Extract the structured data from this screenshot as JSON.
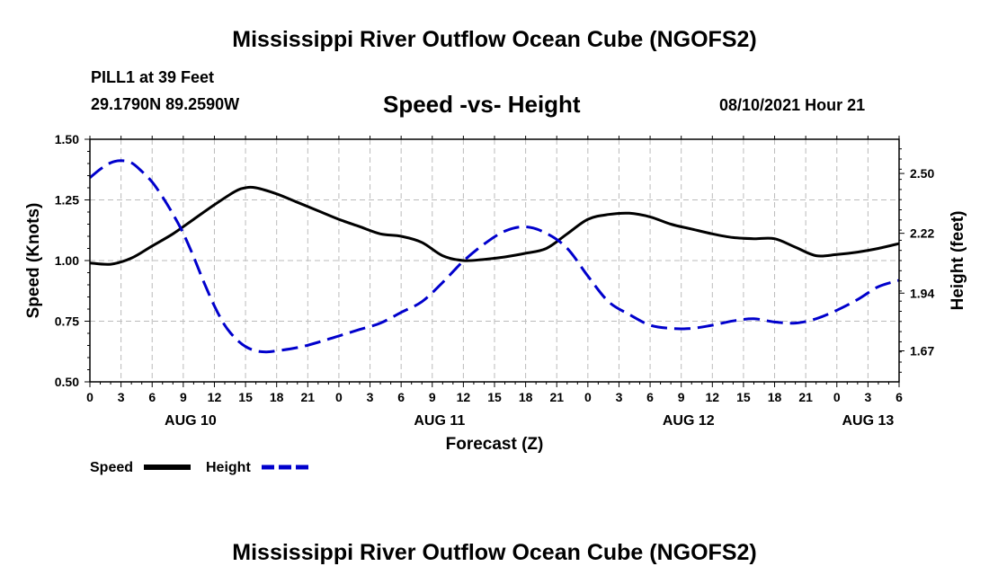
{
  "header": {
    "title": "Mississippi River Outflow Ocean Cube (NGOFS2)",
    "station": "PILL1 at 39 Feet",
    "coords": "29.1790N  89.2590W",
    "subtitle": "Speed -vs- Height",
    "datetime": "08/10/2021 Hour 21"
  },
  "footer": {
    "title": "Mississippi River Outflow Ocean Cube (NGOFS2)"
  },
  "legend": {
    "speed_label": "Speed",
    "height_label": "Height"
  },
  "colors": {
    "speed": "#000000",
    "height": "#0000cc",
    "grid": "#bbbbbb"
  },
  "chart_data": {
    "type": "line",
    "title": "Speed -vs- Height",
    "xlabel": "Forecast (Z)",
    "ylabel": "Speed (Knots)",
    "y2label": "Height (feet)",
    "xlim": [
      0,
      78
    ],
    "ylim": [
      0.5,
      1.5
    ],
    "y2lim": [
      1.525,
      2.66
    ],
    "yticks": [
      "0.50",
      "0.75",
      "1.00",
      "1.25",
      "1.50"
    ],
    "yticks_values": [
      0.5,
      0.75,
      1.0,
      1.25,
      1.5
    ],
    "y2ticks": [
      "1.67",
      "1.94",
      "2.22",
      "2.50"
    ],
    "y2ticks_values": [
      1.67,
      1.94,
      2.22,
      2.5
    ],
    "xticks": [
      "0",
      "3",
      "6",
      "9",
      "12",
      "15",
      "18",
      "21",
      "0",
      "3",
      "6",
      "9",
      "12",
      "15",
      "18",
      "21",
      "0",
      "3",
      "6",
      "9",
      "12",
      "15",
      "18",
      "21",
      "0",
      "3",
      "6"
    ],
    "date_labels": [
      {
        "label": "AUG 10",
        "x": 9.7
      },
      {
        "label": "AUG 11",
        "x": 33.7
      },
      {
        "label": "AUG 12",
        "x": 57.7
      },
      {
        "label": "AUG 13",
        "x": 75
      }
    ],
    "grid": true,
    "series": [
      {
        "name": "Speed",
        "axis": "left",
        "style": "solid",
        "x": [
          0,
          2,
          4,
          6,
          8,
          10,
          12,
          14,
          15,
          16,
          18,
          20,
          22,
          24,
          26,
          28,
          30,
          32,
          34,
          36,
          38,
          40,
          42,
          44,
          46,
          48,
          50,
          52,
          54,
          56,
          58,
          60,
          62,
          64,
          66,
          68,
          70,
          72,
          74,
          76,
          78
        ],
        "values": [
          0.99,
          0.985,
          1.01,
          1.06,
          1.11,
          1.17,
          1.23,
          1.285,
          1.3,
          1.3,
          1.275,
          1.24,
          1.205,
          1.17,
          1.14,
          1.11,
          1.1,
          1.075,
          1.02,
          1.0,
          1.005,
          1.015,
          1.03,
          1.05,
          1.11,
          1.17,
          1.19,
          1.195,
          1.18,
          1.15,
          1.13,
          1.11,
          1.095,
          1.09,
          1.09,
          1.055,
          1.02,
          1.025,
          1.035,
          1.05,
          1.07
        ]
      },
      {
        "name": "Height",
        "axis": "right",
        "style": "dashed",
        "x": [
          0,
          1,
          2,
          3,
          4,
          5,
          6,
          7,
          8,
          9,
          10,
          11,
          12,
          13,
          14,
          15,
          16,
          17,
          18,
          20,
          22,
          24,
          26,
          28,
          30,
          32,
          34,
          36,
          38,
          40,
          42,
          44,
          46,
          48,
          50,
          52,
          54,
          56,
          58,
          60,
          62,
          64,
          66,
          68,
          70,
          72,
          74,
          76,
          78
        ],
        "values": [
          2.48,
          2.52,
          2.55,
          2.56,
          2.55,
          2.51,
          2.46,
          2.39,
          2.31,
          2.22,
          2.11,
          1.99,
          1.88,
          1.79,
          1.73,
          1.69,
          1.67,
          1.665,
          1.67,
          1.685,
          1.71,
          1.74,
          1.77,
          1.8,
          1.85,
          1.9,
          1.99,
          2.09,
          2.17,
          2.23,
          2.25,
          2.22,
          2.15,
          2.02,
          1.9,
          1.84,
          1.79,
          1.775,
          1.775,
          1.79,
          1.81,
          1.82,
          1.805,
          1.8,
          1.82,
          1.86,
          1.91,
          1.97,
          2.0
        ]
      }
    ]
  }
}
